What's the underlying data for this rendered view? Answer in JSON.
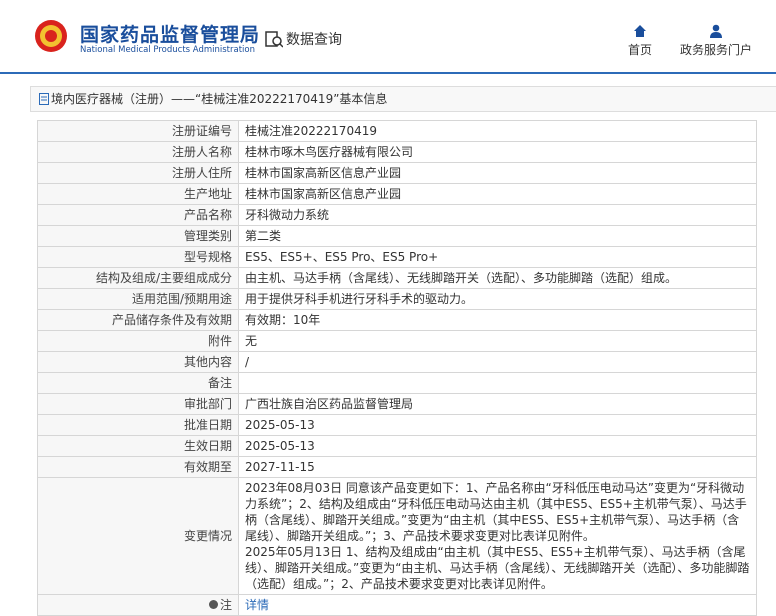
{
  "header": {
    "title": "国家药品监督管理局",
    "subtitle": "National Medical Products Administration",
    "search": "数据查询",
    "nav": [
      "首页",
      "政务服务门户"
    ]
  },
  "breadcrumb": "境内医疗器械（注册）——“桂械注准20222170419”基本信息",
  "table": {
    "rows": [
      {
        "label": "注册证编号",
        "value": "桂械注准20222170419"
      },
      {
        "label": "注册人名称",
        "value": "桂林市啄木鸟医疗器械有限公司"
      },
      {
        "label": "注册人住所",
        "value": "桂林市国家高新区信息产业园"
      },
      {
        "label": "生产地址",
        "value": "桂林市国家高新区信息产业园"
      },
      {
        "label": "产品名称",
        "value": "牙科微动力系统"
      },
      {
        "label": "管理类别",
        "value": "第二类"
      },
      {
        "label": "型号规格",
        "value": "ES5、ES5+、ES5 Pro、ES5 Pro+"
      },
      {
        "label": "结构及组成/主要组成成分",
        "value": "由主机、马达手柄（含尾线）、无线脚踏开关（选配）、多功能脚踏（选配）组成。"
      },
      {
        "label": "适用范围/预期用途",
        "value": "用于提供牙科手机进行牙科手术的驱动力。"
      },
      {
        "label": "产品储存条件及有效期",
        "value": "有效期：10年"
      },
      {
        "label": "附件",
        "value": "无"
      },
      {
        "label": "其他内容",
        "value": "/"
      },
      {
        "label": "备注"
      },
      {
        "label": "审批部门",
        "value": "广西壮族自治区药品监督管理局"
      },
      {
        "label": "批准日期",
        "value": "2025-05-13"
      },
      {
        "label": "生效日期",
        "value": "2025-05-13"
      },
      {
        "label": "有效期至",
        "value": "2027-11-15"
      },
      {
        "label": "变更情况",
        "value": [
          "2023年08月03日 同意该产品变更如下：1、产品名称由“牙科低压电动马达”变更为“牙科微动力系统”；2、结构及组成由“牙科低压电动马达由主机（其中ES5、ES5+主机带气泵）、马达手柄（含尾线）、脚踏开关组成。”变更为“由主机（其中ES5、ES5+主机带气泵）、马达手柄（含尾线）、脚踏开关组成。”；3、产品技术要求变更对比表详见附件。",
          "2025年05月13日 1、结构及组成由“由主机（其中ES5、ES5+主机带气泵）、马达手柄（含尾线）、脚踏开关组成。”变更为“由主机、马达手柄（含尾线）、无线脚踏开关（选配）、多功能脚踏（选配）组成。”；2、产品技术要求变更对比表详见附件。"
        ]
      },
      {
        "label": "注",
        "link": "详情"
      }
    ]
  }
}
